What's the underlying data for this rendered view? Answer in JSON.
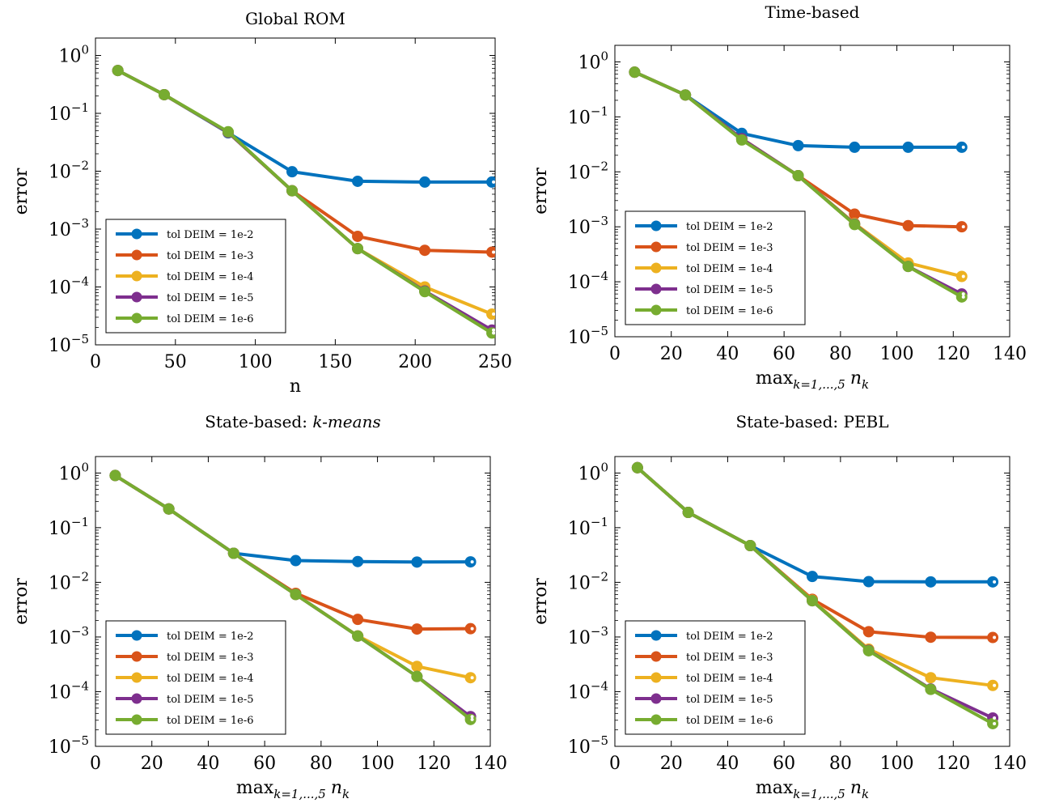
{
  "chart_data": [
    {
      "type": "line",
      "title": "Global ROM",
      "title_prefix": "",
      "title_italic": "",
      "xlabel": "n",
      "xlabel_math": false,
      "ylabel": "error",
      "xlim": [
        0,
        250
      ],
      "xticks": [
        0,
        50,
        100,
        150,
        200,
        250
      ],
      "ylim": [
        1e-05,
        2
      ],
      "yscale": "log",
      "legend_position": "lower-left",
      "x": [
        14,
        43,
        83,
        123,
        164,
        206,
        248
      ],
      "series": [
        {
          "name": "tol DEIM = 1e-2",
          "color": "#0072BD",
          "values": [
            0.55,
            0.21,
            0.046,
            0.0098,
            0.0067,
            0.0065,
            0.0065
          ]
        },
        {
          "name": "tol DEIM = 1e-3",
          "color": "#D95319",
          "values": [
            0.55,
            0.21,
            0.047,
            0.0046,
            0.00075,
            0.00043,
            0.0004
          ]
        },
        {
          "name": "tol DEIM = 1e-4",
          "color": "#EDB120",
          "values": [
            0.55,
            0.21,
            0.047,
            0.0046,
            0.00046,
            0.0001,
            3.4e-05
          ]
        },
        {
          "name": "tol DEIM = 1e-5",
          "color": "#7E2F8E",
          "values": [
            0.55,
            0.21,
            0.047,
            0.0046,
            0.00046,
            8.5e-05,
            1.8e-05
          ]
        },
        {
          "name": "tol DEIM = 1e-6",
          "color": "#77AC30",
          "values": [
            0.55,
            0.21,
            0.048,
            0.0046,
            0.00046,
            8.3e-05,
            1.6e-05
          ]
        }
      ]
    },
    {
      "type": "line",
      "title": "Time-based",
      "title_prefix": "",
      "title_italic": "",
      "xlabel": "max",
      "xlabel_sub": "k=1,...,5",
      "xlabel_var": "n",
      "xlabel_var_sub": "k",
      "xlabel_math": true,
      "ylabel": "error",
      "xlim": [
        0,
        140
      ],
      "xticks": [
        0,
        20,
        40,
        60,
        80,
        100,
        120,
        140
      ],
      "ylim": [
        1e-05,
        2
      ],
      "yscale": "log",
      "legend_position": "lower-left",
      "x": [
        7,
        25,
        45,
        65,
        85,
        104,
        123
      ],
      "series": [
        {
          "name": "tol DEIM = 1e-2",
          "color": "#0072BD",
          "values": [
            0.65,
            0.25,
            0.05,
            0.03,
            0.028,
            0.028,
            0.028
          ]
        },
        {
          "name": "tol DEIM = 1e-3",
          "color": "#D95319",
          "values": [
            0.65,
            0.25,
            0.04,
            0.0085,
            0.0017,
            0.00105,
            0.001
          ]
        },
        {
          "name": "tol DEIM = 1e-4",
          "color": "#EDB120",
          "values": [
            0.65,
            0.25,
            0.04,
            0.0085,
            0.00115,
            0.00022,
            0.000125
          ]
        },
        {
          "name": "tol DEIM = 1e-5",
          "color": "#7E2F8E",
          "values": [
            0.65,
            0.25,
            0.04,
            0.0085,
            0.00112,
            0.00019,
            6e-05
          ]
        },
        {
          "name": "tol DEIM = 1e-6",
          "color": "#77AC30",
          "values": [
            0.65,
            0.25,
            0.038,
            0.0085,
            0.0011,
            0.00019,
            5.3e-05
          ]
        }
      ]
    },
    {
      "type": "line",
      "title": "",
      "title_prefix": "State-based: ",
      "title_italic": "k-means",
      "xlabel": "max",
      "xlabel_sub": "k=1,...,5",
      "xlabel_var": "n",
      "xlabel_var_sub": "k",
      "xlabel_math": true,
      "ylabel": "error",
      "xlim": [
        0,
        140
      ],
      "xticks": [
        0,
        20,
        40,
        60,
        80,
        100,
        120,
        140
      ],
      "ylim": [
        1e-05,
        2
      ],
      "yscale": "log",
      "legend_position": "lower-left",
      "x": [
        7,
        26,
        49,
        71,
        93,
        114,
        133
      ],
      "series": [
        {
          "name": "tol DEIM = 1e-2",
          "color": "#0072BD",
          "values": [
            0.9,
            0.22,
            0.034,
            0.025,
            0.024,
            0.0235,
            0.0237
          ]
        },
        {
          "name": "tol DEIM = 1e-3",
          "color": "#D95319",
          "values": [
            0.9,
            0.22,
            0.034,
            0.0063,
            0.0021,
            0.0014,
            0.00142
          ]
        },
        {
          "name": "tol DEIM = 1e-4",
          "color": "#EDB120",
          "values": [
            0.9,
            0.22,
            0.034,
            0.006,
            0.00105,
            0.00029,
            0.00018
          ]
        },
        {
          "name": "tol DEIM = 1e-5",
          "color": "#7E2F8E",
          "values": [
            0.9,
            0.22,
            0.034,
            0.006,
            0.00104,
            0.00019,
            3.5e-05
          ]
        },
        {
          "name": "tol DEIM = 1e-6",
          "color": "#77AC30",
          "values": [
            0.9,
            0.22,
            0.034,
            0.006,
            0.00104,
            0.00019,
            3.1e-05
          ]
        }
      ]
    },
    {
      "type": "line",
      "title": "",
      "title_prefix": "State-based: PEBL",
      "title_italic": "",
      "xlabel": "max",
      "xlabel_sub": "k=1,...,5",
      "xlabel_var": "n",
      "xlabel_var_sub": "k",
      "xlabel_math": true,
      "ylabel": "error",
      "xlim": [
        0,
        140
      ],
      "xticks": [
        0,
        20,
        40,
        60,
        80,
        100,
        120,
        140
      ],
      "ylim": [
        1e-05,
        2
      ],
      "yscale": "log",
      "legend_position": "lower-left",
      "x": [
        8,
        26,
        48,
        70,
        90,
        112,
        134
      ],
      "series": [
        {
          "name": "tol DEIM = 1e-2",
          "color": "#0072BD",
          "values": [
            1.25,
            0.19,
            0.047,
            0.0128,
            0.0103,
            0.0102,
            0.0102
          ]
        },
        {
          "name": "tol DEIM = 1e-3",
          "color": "#D95319",
          "values": [
            1.25,
            0.19,
            0.047,
            0.0049,
            0.00125,
            0.00099,
            0.00098
          ]
        },
        {
          "name": "tol DEIM = 1e-4",
          "color": "#EDB120",
          "values": [
            1.25,
            0.19,
            0.047,
            0.0047,
            0.0006,
            0.00018,
            0.00013
          ]
        },
        {
          "name": "tol DEIM = 1e-5",
          "color": "#7E2F8E",
          "values": [
            1.25,
            0.19,
            0.047,
            0.0046,
            0.00057,
            0.000112,
            3.3e-05
          ]
        },
        {
          "name": "tol DEIM = 1e-6",
          "color": "#77AC30",
          "values": [
            1.25,
            0.19,
            0.047,
            0.0046,
            0.00056,
            0.00011,
            2.6e-05
          ]
        }
      ]
    }
  ]
}
